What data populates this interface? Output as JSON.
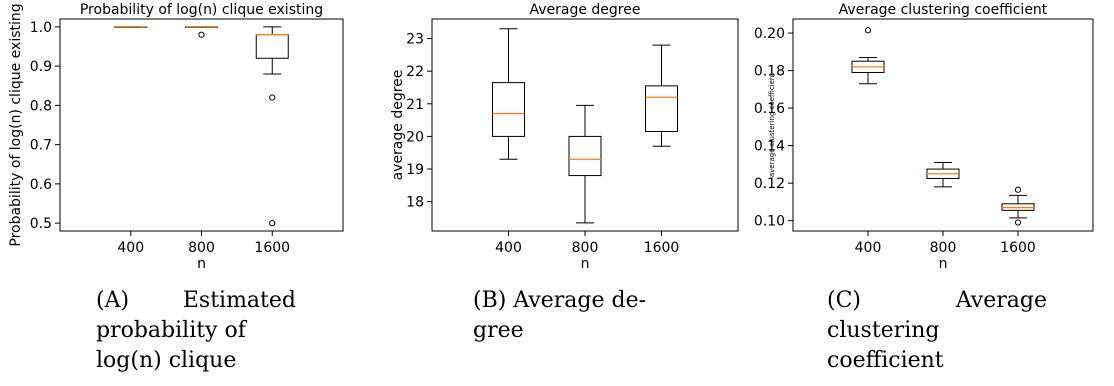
{
  "chart_data": [
    {
      "type": "box",
      "title": "Probability of log(n) clique existing",
      "xlabel": "n",
      "ylabel": "Probability of log(n) clique existing",
      "categories": [
        "400",
        "800",
        "1600"
      ],
      "ylim": [
        0.48,
        1.02
      ],
      "yticks": [
        "0.5",
        "0.6",
        "0.7",
        "0.8",
        "0.9",
        "1.0"
      ],
      "grid": false,
      "boxes": [
        {
          "category": "400",
          "whisker_low": 1.0,
          "q1": 1.0,
          "median": 1.0,
          "q3": 1.0,
          "whisker_high": 1.0,
          "outliers": []
        },
        {
          "category": "800",
          "whisker_low": 1.0,
          "q1": 1.0,
          "median": 1.0,
          "q3": 1.0,
          "whisker_high": 1.0,
          "outliers": [
            0.98
          ]
        },
        {
          "category": "1600",
          "whisker_low": 0.88,
          "q1": 0.92,
          "median": 0.98,
          "q3": 0.98,
          "whisker_high": 1.0,
          "outliers": [
            0.82,
            0.5
          ]
        }
      ]
    },
    {
      "type": "box",
      "title": "Average degree",
      "xlabel": "n",
      "ylabel": "average degree",
      "categories": [
        "400",
        "800",
        "1600"
      ],
      "ylim": [
        17.1,
        23.6
      ],
      "yticks": [
        "18",
        "19",
        "20",
        "21",
        "22",
        "23"
      ],
      "grid": false,
      "boxes": [
        {
          "category": "400",
          "whisker_low": 19.3,
          "q1": 20.0,
          "median": 20.7,
          "q3": 21.65,
          "whisker_high": 23.3,
          "outliers": []
        },
        {
          "category": "800",
          "whisker_low": 17.35,
          "q1": 18.8,
          "median": 19.3,
          "q3": 20.0,
          "whisker_high": 20.95,
          "outliers": []
        },
        {
          "category": "1600",
          "whisker_low": 19.7,
          "q1": 20.15,
          "median": 21.2,
          "q3": 21.55,
          "whisker_high": 22.8,
          "outliers": []
        }
      ]
    },
    {
      "type": "box",
      "title": "Average clustering coefficient",
      "xlabel": "n",
      "ylabel": "average clustering coefficient",
      "categories": [
        "400",
        "800",
        "1600"
      ],
      "ylim": [
        0.0945,
        0.2075
      ],
      "yticks": [
        "0.10",
        "0.12",
        "0.14",
        "0.16",
        "0.18",
        "0.20"
      ],
      "grid": false,
      "boxes": [
        {
          "category": "400",
          "whisker_low": 0.173,
          "q1": 0.179,
          "median": 0.182,
          "q3": 0.185,
          "whisker_high": 0.187,
          "outliers": [
            0.2015
          ]
        },
        {
          "category": "800",
          "whisker_low": 0.118,
          "q1": 0.1225,
          "median": 0.125,
          "q3": 0.1275,
          "whisker_high": 0.131,
          "outliers": []
        },
        {
          "category": "1600",
          "whisker_low": 0.1015,
          "q1": 0.1055,
          "median": 0.107,
          "q3": 0.109,
          "whisker_high": 0.1135,
          "outliers": [
            0.1165,
            0.099
          ]
        }
      ]
    }
  ],
  "colors": {
    "median": "#ff7f0e",
    "box": "#000000"
  },
  "captions": [
    {
      "tag": "(A)",
      "lines": [
        "Estimated",
        "probability of",
        "log(n) clique"
      ]
    },
    {
      "tag": "(B)",
      "lines": [
        "Average de-",
        "gree"
      ]
    },
    {
      "tag": "(C)",
      "lines": [
        "Average",
        "clustering",
        "coefficient"
      ]
    }
  ]
}
